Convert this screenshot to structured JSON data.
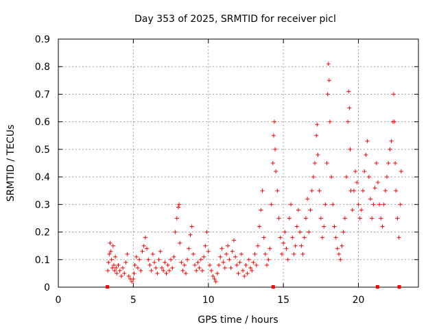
{
  "chart_data": {
    "type": "scatter",
    "title": "Day 353 of 2025, SRMTID for receiver picl",
    "xlabel": "GPS time / hours",
    "ylabel": "SRMTID / TECUs",
    "xlim": [
      0,
      24
    ],
    "ylim": [
      0,
      0.9
    ],
    "xticks": [
      0,
      5,
      10,
      15,
      20
    ],
    "yticks": [
      0,
      0.1,
      0.2,
      0.3,
      0.4,
      0.5,
      0.6,
      0.7,
      0.8,
      0.9
    ],
    "grid": true,
    "marker_color": "#ff0000",
    "series": [
      {
        "name": "SRMTID",
        "points": [
          [
            3.3,
            0.06
          ],
          [
            3.35,
            0.09
          ],
          [
            3.4,
            0.12
          ],
          [
            3.45,
            0.16
          ],
          [
            3.5,
            0.13
          ],
          [
            3.55,
            0.1
          ],
          [
            3.6,
            0.07
          ],
          [
            3.65,
            0.15
          ],
          [
            3.7,
            0.08
          ],
          [
            3.75,
            0.06
          ],
          [
            3.8,
            0.11
          ],
          [
            3.85,
            0.07
          ],
          [
            3.9,
            0.05
          ],
          [
            4.0,
            0.08
          ],
          [
            4.1,
            0.06
          ],
          [
            4.2,
            0.04
          ],
          [
            4.3,
            0.07
          ],
          [
            4.4,
            0.05
          ],
          [
            4.5,
            0.09
          ],
          [
            4.6,
            0.12
          ],
          [
            4.7,
            0.04
          ],
          [
            4.8,
            0.03
          ],
          [
            4.9,
            0.02
          ],
          [
            5.0,
            0.03
          ],
          [
            5.05,
            0.05
          ],
          [
            5.1,
            0.08
          ],
          [
            5.2,
            0.11
          ],
          [
            5.3,
            0.07
          ],
          [
            5.4,
            0.1
          ],
          [
            5.5,
            0.06
          ],
          [
            5.6,
            0.13
          ],
          [
            5.7,
            0.15
          ],
          [
            5.8,
            0.18
          ],
          [
            5.9,
            0.14
          ],
          [
            6.0,
            0.1
          ],
          [
            6.1,
            0.08
          ],
          [
            6.2,
            0.06
          ],
          [
            6.3,
            0.12
          ],
          [
            6.4,
            0.09
          ],
          [
            6.5,
            0.07
          ],
          [
            6.6,
            0.05
          ],
          [
            6.7,
            0.1
          ],
          [
            6.8,
            0.13
          ],
          [
            6.9,
            0.07
          ],
          [
            7.0,
            0.06
          ],
          [
            7.1,
            0.09
          ],
          [
            7.2,
            0.05
          ],
          [
            7.3,
            0.08
          ],
          [
            7.4,
            0.06
          ],
          [
            7.5,
            0.1
          ],
          [
            7.6,
            0.07
          ],
          [
            7.7,
            0.11
          ],
          [
            7.8,
            0.2
          ],
          [
            7.9,
            0.25
          ],
          [
            8.0,
            0.29
          ],
          [
            8.05,
            0.3
          ],
          [
            8.1,
            0.16
          ],
          [
            8.2,
            0.09
          ],
          [
            8.3,
            0.06
          ],
          [
            8.4,
            0.08
          ],
          [
            8.5,
            0.05
          ],
          [
            8.6,
            0.1
          ],
          [
            8.7,
            0.14
          ],
          [
            8.8,
            0.19
          ],
          [
            8.9,
            0.22
          ],
          [
            9.0,
            0.12
          ],
          [
            9.1,
            0.08
          ],
          [
            9.2,
            0.06
          ],
          [
            9.3,
            0.09
          ],
          [
            9.4,
            0.07
          ],
          [
            9.5,
            0.1
          ],
          [
            9.6,
            0.06
          ],
          [
            9.7,
            0.11
          ],
          [
            9.8,
            0.15
          ],
          [
            9.9,
            0.2
          ],
          [
            10.0,
            0.13
          ],
          [
            10.1,
            0.08
          ],
          [
            10.2,
            0.06
          ],
          [
            10.3,
            0.04
          ],
          [
            10.4,
            0.03
          ],
          [
            10.5,
            0.02
          ],
          [
            10.6,
            0.05
          ],
          [
            10.7,
            0.08
          ],
          [
            10.8,
            0.11
          ],
          [
            10.9,
            0.14
          ],
          [
            11.0,
            0.09
          ],
          [
            11.1,
            0.07
          ],
          [
            11.2,
            0.12
          ],
          [
            11.3,
            0.15
          ],
          [
            11.4,
            0.1
          ],
          [
            11.5,
            0.07
          ],
          [
            11.6,
            0.13
          ],
          [
            11.7,
            0.17
          ],
          [
            11.8,
            0.11
          ],
          [
            11.9,
            0.08
          ],
          [
            12.0,
            0.05
          ],
          [
            12.1,
            0.09
          ],
          [
            12.2,
            0.12
          ],
          [
            12.3,
            0.06
          ],
          [
            12.4,
            0.04
          ],
          [
            12.5,
            0.08
          ],
          [
            12.6,
            0.05
          ],
          [
            12.7,
            0.1
          ],
          [
            12.8,
            0.07
          ],
          [
            12.9,
            0.06
          ],
          [
            13.0,
            0.09
          ],
          [
            13.1,
            0.12
          ],
          [
            13.2,
            0.08
          ],
          [
            13.3,
            0.15
          ],
          [
            13.4,
            0.22
          ],
          [
            13.5,
            0.28
          ],
          [
            13.6,
            0.35
          ],
          [
            13.7,
            0.18
          ],
          [
            13.8,
            0.12
          ],
          [
            13.9,
            0.08
          ],
          [
            14.0,
            0.1
          ],
          [
            14.1,
            0.14
          ],
          [
            14.2,
            0.3
          ],
          [
            14.3,
            0.45
          ],
          [
            14.35,
            0.55
          ],
          [
            14.4,
            0.6
          ],
          [
            14.45,
            0.5
          ],
          [
            14.5,
            0.42
          ],
          [
            14.6,
            0.35
          ],
          [
            14.7,
            0.25
          ],
          [
            14.8,
            0.18
          ],
          [
            14.9,
            0.12
          ],
          [
            15.0,
            0.16
          ],
          [
            15.1,
            0.2
          ],
          [
            15.2,
            0.14
          ],
          [
            15.3,
            0.1
          ],
          [
            15.4,
            0.25
          ],
          [
            15.5,
            0.3
          ],
          [
            15.6,
            0.18
          ],
          [
            15.7,
            0.12
          ],
          [
            15.8,
            0.15
          ],
          [
            15.9,
            0.22
          ],
          [
            16.0,
            0.28
          ],
          [
            16.1,
            0.2
          ],
          [
            16.2,
            0.15
          ],
          [
            16.3,
            0.12
          ],
          [
            16.4,
            0.18
          ],
          [
            16.5,
            0.25
          ],
          [
            16.6,
            0.32
          ],
          [
            16.7,
            0.2
          ],
          [
            16.8,
            0.28
          ],
          [
            16.9,
            0.35
          ],
          [
            17.0,
            0.4
          ],
          [
            17.1,
            0.45
          ],
          [
            17.2,
            0.55
          ],
          [
            17.25,
            0.59
          ],
          [
            17.3,
            0.48
          ],
          [
            17.4,
            0.35
          ],
          [
            17.5,
            0.25
          ],
          [
            17.6,
            0.18
          ],
          [
            17.7,
            0.22
          ],
          [
            17.8,
            0.3
          ],
          [
            17.9,
            0.45
          ],
          [
            17.95,
            0.7
          ],
          [
            18.0,
            0.81
          ],
          [
            18.05,
            0.75
          ],
          [
            18.1,
            0.6
          ],
          [
            18.2,
            0.4
          ],
          [
            18.3,
            0.3
          ],
          [
            18.4,
            0.22
          ],
          [
            18.5,
            0.18
          ],
          [
            18.6,
            0.14
          ],
          [
            18.7,
            0.12
          ],
          [
            18.8,
            0.1
          ],
          [
            18.9,
            0.15
          ],
          [
            19.0,
            0.2
          ],
          [
            19.1,
            0.25
          ],
          [
            19.2,
            0.4
          ],
          [
            19.3,
            0.6
          ],
          [
            19.35,
            0.71
          ],
          [
            19.4,
            0.65
          ],
          [
            19.45,
            0.5
          ],
          [
            19.5,
            0.35
          ],
          [
            19.6,
            0.28
          ],
          [
            19.7,
            0.35
          ],
          [
            19.8,
            0.42
          ],
          [
            19.9,
            0.38
          ],
          [
            20.0,
            0.3
          ],
          [
            20.1,
            0.25
          ],
          [
            20.2,
            0.28
          ],
          [
            20.3,
            0.35
          ],
          [
            20.4,
            0.42
          ],
          [
            20.5,
            0.48
          ],
          [
            20.6,
            0.53
          ],
          [
            20.7,
            0.4
          ],
          [
            20.8,
            0.32
          ],
          [
            20.9,
            0.25
          ],
          [
            21.0,
            0.3
          ],
          [
            21.1,
            0.36
          ],
          [
            21.2,
            0.45
          ],
          [
            21.3,
            0.38
          ],
          [
            21.4,
            0.3
          ],
          [
            21.5,
            0.25
          ],
          [
            21.6,
            0.22
          ],
          [
            21.7,
            0.3
          ],
          [
            21.8,
            0.35
          ],
          [
            21.9,
            0.4
          ],
          [
            22.0,
            0.45
          ],
          [
            22.1,
            0.5
          ],
          [
            22.2,
            0.53
          ],
          [
            22.3,
            0.6
          ],
          [
            22.35,
            0.7
          ],
          [
            22.4,
            0.6
          ],
          [
            22.45,
            0.45
          ],
          [
            22.5,
            0.35
          ],
          [
            22.6,
            0.25
          ],
          [
            22.7,
            0.18
          ],
          [
            22.8,
            0.3
          ],
          [
            22.85,
            0.42
          ]
        ],
        "zero_points": [
          3.25,
          14.3,
          21.25,
          22.7
        ]
      }
    ]
  }
}
